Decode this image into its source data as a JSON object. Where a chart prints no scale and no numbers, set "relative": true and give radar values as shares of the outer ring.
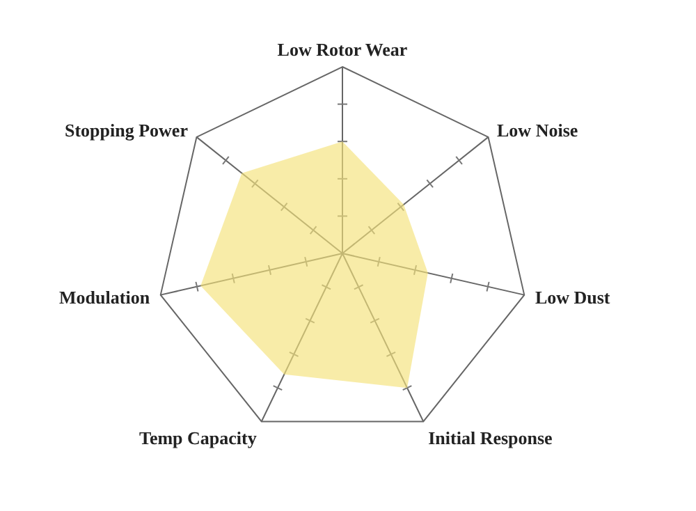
{
  "chart_data": {
    "type": "radar",
    "relative": true,
    "grid": true,
    "categories": [
      "Low Rotor Wear",
      "Low Noise",
      "Low Dust",
      "Initial Response",
      "Temp Capacity",
      "Modulation",
      "Stopping Power"
    ],
    "series": [
      {
        "color": "#f5e27a",
        "values": [
          0.6,
          0.42,
          0.47,
          0.8,
          0.72,
          0.78,
          0.69
        ]
      }
    ]
  }
}
